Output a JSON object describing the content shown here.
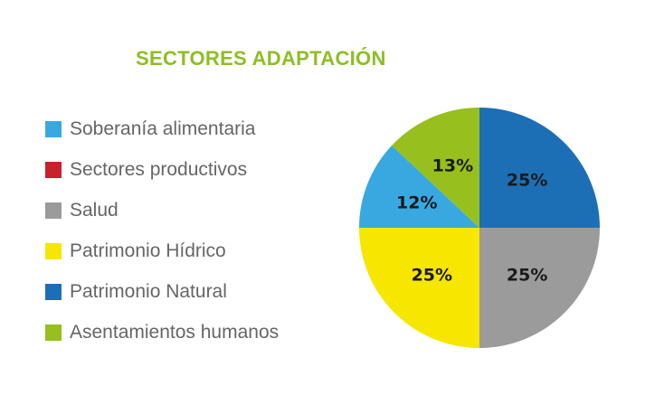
{
  "chart_data": {
    "type": "pie",
    "title": "SECTORES ADAPTACIÓN",
    "legend_position": "left",
    "categories": [
      "Soberanía alimentaria",
      "Sectores productivos",
      "Salud",
      "Patrimonio Hídrico",
      "Patrimonio Natural",
      "Asentamientos humanos"
    ],
    "colors": [
      "#3aa8e0",
      "#c8202c",
      "#9b9b9b",
      "#f6e600",
      "#1d6fb5",
      "#97bf1e"
    ],
    "values": [
      12,
      0,
      25,
      25,
      25,
      13
    ],
    "value_labels": [
      "12%",
      "",
      "25%",
      "25%",
      "25%",
      "13%"
    ],
    "slice_order": [
      4,
      2,
      3,
      0,
      5
    ]
  }
}
